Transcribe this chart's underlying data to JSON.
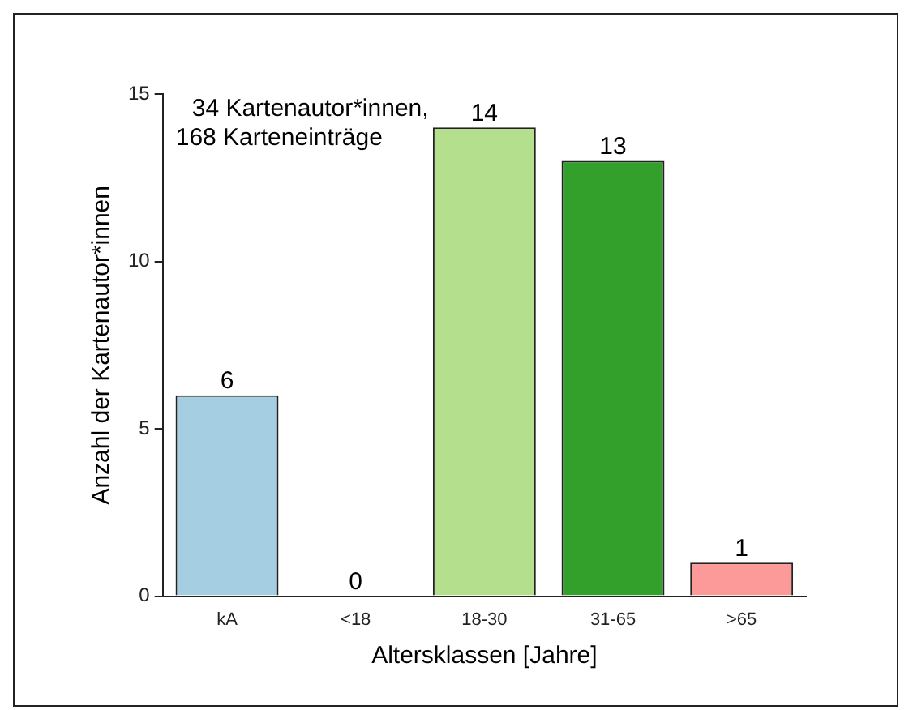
{
  "chart_data": {
    "type": "bar",
    "xlabel": "Altersklassen [Jahre]",
    "ylabel": "Anzahl der Kartenautor*innen",
    "categories": [
      "kA",
      "<18",
      "18-30",
      "31-65",
      ">65"
    ],
    "values": [
      6,
      0,
      14,
      13,
      1
    ],
    "colors": [
      "#a6cee3",
      "#b2df8a",
      "#b4df8c",
      "#33a02c",
      "#fb9a99"
    ],
    "ylim": [
      0,
      15
    ],
    "yticks": [
      0,
      5,
      10,
      15
    ],
    "grid": false,
    "legend": false,
    "data_labels": true,
    "annotations": [
      "34 Kartenautor*innen,\n168 Karteneinträge"
    ]
  }
}
